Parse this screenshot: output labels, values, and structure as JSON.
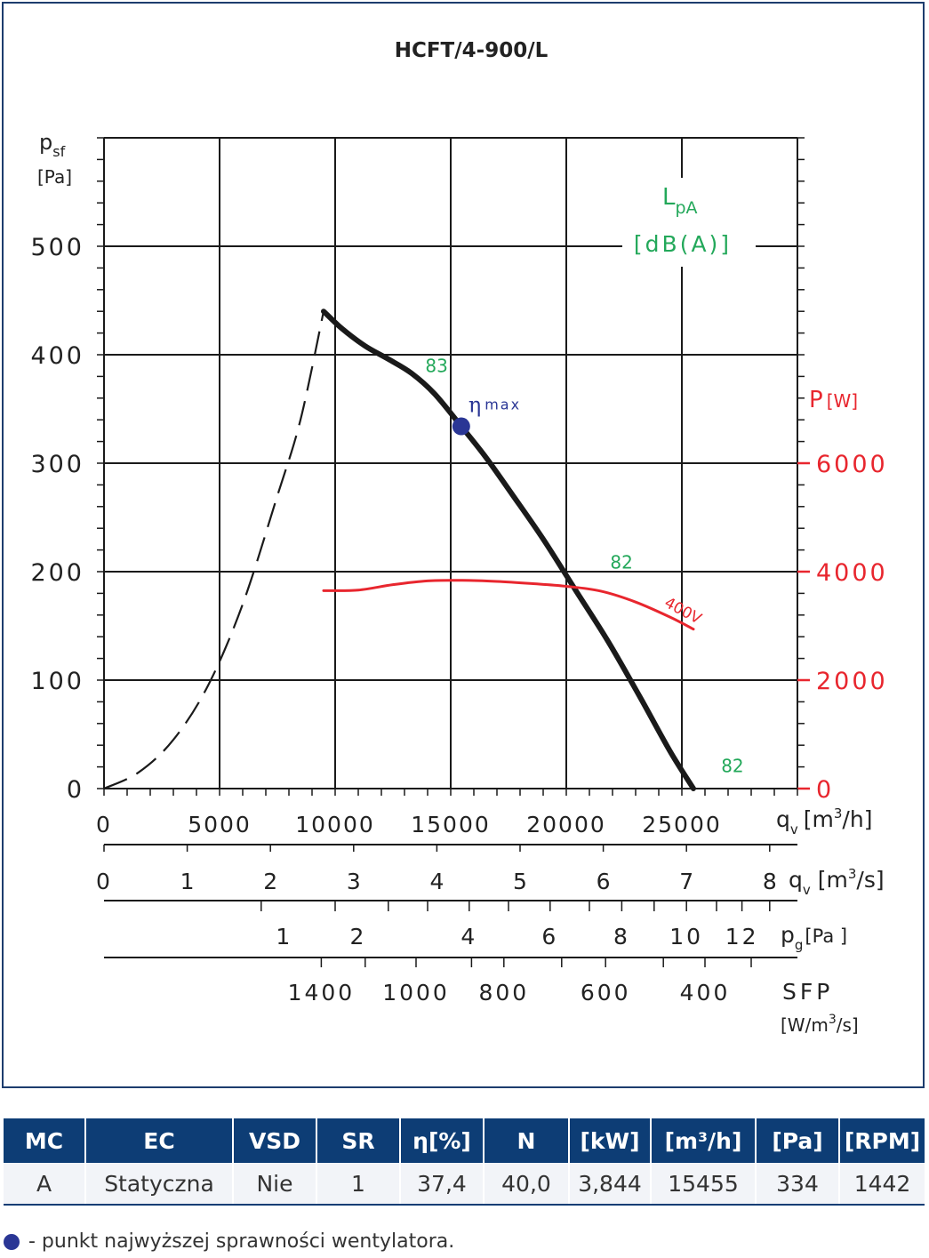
{
  "chart_data": {
    "type": "line",
    "title": "HCFT/4-900/L",
    "y_left": {
      "label": "p",
      "label_sub": "sf",
      "unit": "[Pa]",
      "ticks": [
        0,
        100,
        200,
        300,
        400,
        500
      ],
      "range": [
        0,
        600
      ]
    },
    "y_right": {
      "label": "P",
      "unit": "[W]",
      "ticks": [
        0,
        2000,
        4000,
        6000
      ],
      "color": "#e8262e"
    },
    "x_axis": {
      "label": "q",
      "label_sub": "v",
      "unit": "[m",
      "unit_sup": "3",
      "unit_end": "/h]",
      "ticks": [
        0,
        5000,
        10000,
        15000,
        20000,
        25000
      ],
      "range": [
        0,
        30000
      ]
    },
    "x_axis_m3s": {
      "label": "q",
      "label_sub": "v",
      "unit": "[m",
      "unit_sup": "3",
      "unit_end": "/s]",
      "ticks": [
        "0",
        "1",
        "2",
        "3",
        "4",
        "5",
        "6",
        "7",
        "8"
      ],
      "values": [
        0,
        1,
        2,
        3,
        4,
        5,
        6,
        7,
        8
      ]
    },
    "pg_axis": {
      "label": "p",
      "label_sub": "g",
      "unit": "[Pa ]",
      "tick_labels": [
        "1",
        "2",
        "4",
        "6",
        "8",
        "10",
        "12"
      ],
      "tick_at_m3h": [
        7800,
        11000,
        15800,
        19300,
        22400,
        25200,
        27600
      ]
    },
    "sfp_axis": {
      "label": "SFP",
      "unit": "[W/m",
      "unit_sup": "3",
      "unit_end": "/s]",
      "tick_labels": [
        "1400",
        "1000",
        "800",
        "600",
        "400"
      ],
      "tick_at_m3h": [
        9400,
        13500,
        17300,
        21700,
        26000
      ]
    },
    "lpa_label": "L",
    "lpa_sub": "pA",
    "lpa_unit": "[dB(A)]",
    "series": [
      {
        "role": "pressure-curve",
        "color": "#1a1a1a",
        "x": [
          9500,
          10300,
          11300,
          12300,
          13300,
          14300,
          15455,
          16500,
          17700,
          19000,
          20400,
          21800,
          23200,
          24500,
          25500
        ],
        "y": [
          440,
          424,
          408,
          396,
          383,
          364,
          334,
          306,
          270,
          230,
          183,
          136,
          84,
          34,
          0
        ]
      },
      {
        "role": "unstable-region",
        "color": "#1a1a1a",
        "dashed": true,
        "x": [
          0,
          1500,
          3000,
          4500,
          6000,
          7500,
          8500,
          9500
        ],
        "y": [
          0,
          15,
          45,
          95,
          170,
          270,
          340,
          440
        ]
      },
      {
        "name": "400V",
        "role": "power-curve",
        "axis": "right",
        "color": "#e8262e",
        "x": [
          9500,
          11000,
          12500,
          14000,
          15500,
          17000,
          18500,
          20000,
          21500,
          23000,
          24500,
          25500
        ],
        "y": [
          3650,
          3660,
          3760,
          3830,
          3840,
          3820,
          3780,
          3730,
          3640,
          3440,
          3160,
          2940
        ]
      }
    ],
    "lpa_labels": [
      {
        "text": "83",
        "x": 13900,
        "y": 384
      },
      {
        "text": "82",
        "x": 21900,
        "y": 203
      },
      {
        "text": "82",
        "x": 26700,
        "y": 15
      }
    ],
    "eta_max": {
      "symbol": "η",
      "label": "max",
      "x": 15455,
      "y": 334,
      "color": "#2a3695"
    },
    "grid": true
  },
  "table": {
    "headers": [
      "MC",
      "EC",
      "VSD",
      "SR",
      "η[%]",
      "N",
      "[kW]",
      "[m³/h]",
      "[Pa]",
      "[RPM]"
    ],
    "row": [
      "A",
      "Statyczna",
      "Nie",
      "1",
      "37,4",
      "40,0",
      "3,844",
      "15455",
      "334",
      "1442"
    ]
  },
  "footnote": "- punkt najwyższej sprawności wentylatora."
}
